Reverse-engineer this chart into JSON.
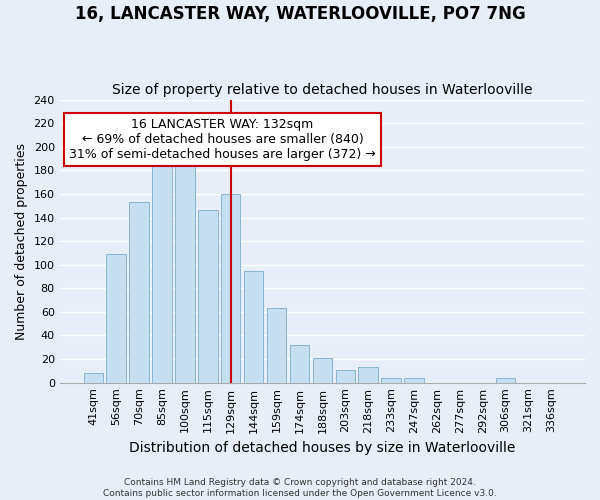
{
  "title": "16, LANCASTER WAY, WATERLOOVILLE, PO7 7NG",
  "subtitle": "Size of property relative to detached houses in Waterlooville",
  "xlabel": "Distribution of detached houses by size in Waterlooville",
  "ylabel": "Number of detached properties",
  "bar_labels": [
    "41sqm",
    "56sqm",
    "70sqm",
    "85sqm",
    "100sqm",
    "115sqm",
    "129sqm",
    "144sqm",
    "159sqm",
    "174sqm",
    "188sqm",
    "203sqm",
    "218sqm",
    "233sqm",
    "247sqm",
    "262sqm",
    "277sqm",
    "292sqm",
    "306sqm",
    "321sqm",
    "336sqm"
  ],
  "bar_heights": [
    8,
    109,
    153,
    195,
    196,
    146,
    160,
    95,
    63,
    32,
    21,
    11,
    13,
    4,
    4,
    0,
    0,
    0,
    4,
    0,
    0
  ],
  "bar_color": "#c6dff0",
  "bar_edge_color": "#8ab4d4",
  "vline_index": 6,
  "vline_color": "#cc0000",
  "annotation_text": "16 LANCASTER WAY: 132sqm\n← 69% of detached houses are smaller (840)\n31% of semi-detached houses are larger (372) →",
  "annotation_box_facecolor": "#ffffff",
  "annotation_box_edgecolor": "#cc0000",
  "ylim": [
    0,
    240
  ],
  "yticks": [
    0,
    20,
    40,
    60,
    80,
    100,
    120,
    140,
    160,
    180,
    200,
    220,
    240
  ],
  "footer": "Contains HM Land Registry data © Crown copyright and database right 2024.\nContains public sector information licensed under the Open Government Licence v3.0.",
  "background_color": "#e8eef8",
  "plot_bg_color": "#e8eef8",
  "grid_color": "#ffffff",
  "title_fontsize": 12,
  "subtitle_fontsize": 10,
  "xlabel_fontsize": 10,
  "ylabel_fontsize": 9,
  "tick_fontsize": 8,
  "annotation_fontsize": 9,
  "footer_fontsize": 6.5
}
